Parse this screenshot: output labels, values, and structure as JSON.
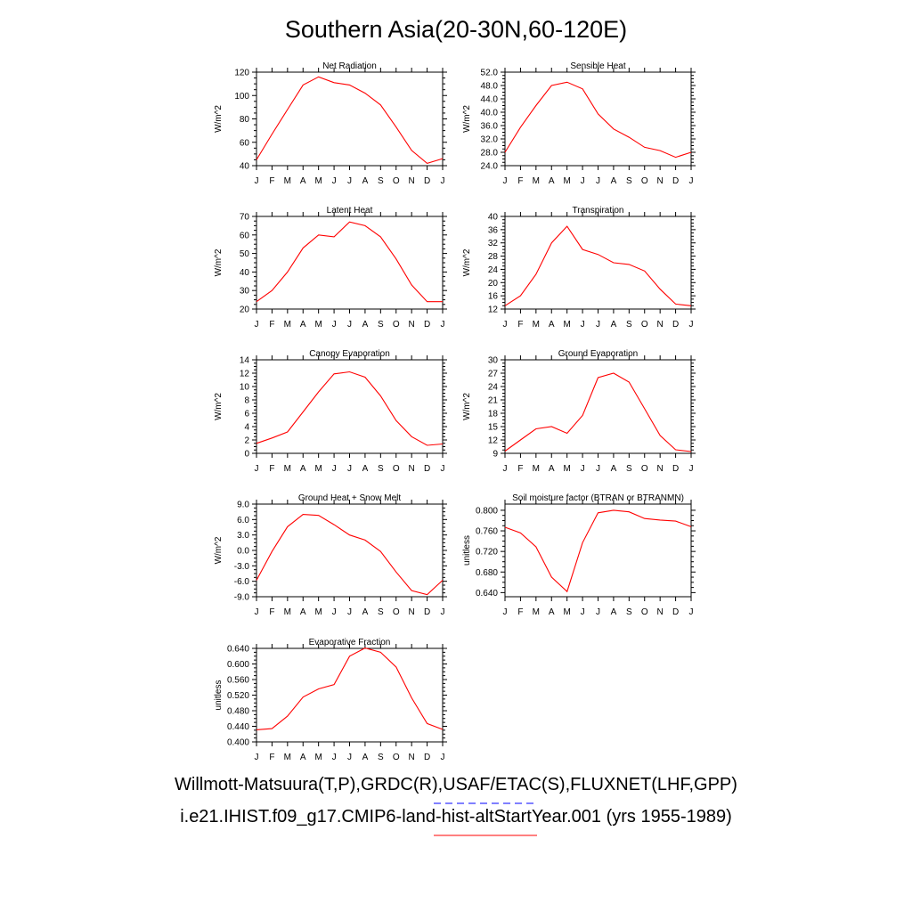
{
  "title": "Southern Asia(20-30N,60-120E)",
  "legend": {
    "observations": "Willmott-Matsuura(T,P),GRDC(R),USAF/ETAC(S),FLUXNET(LHF,GPP)",
    "model": "i.e21.IHIST.f09_g17.CMIP6-land-hist-altStartYear.001 (yrs 1955-1989)",
    "observations_color": "#0000ff",
    "model_color": "#ff0000"
  },
  "chart_data": [
    {
      "type": "line",
      "title": "Net Radiation",
      "ylabel": "W/m^2",
      "categories": [
        "J",
        "F",
        "M",
        "A",
        "M",
        "J",
        "J",
        "A",
        "S",
        "O",
        "N",
        "D",
        "J"
      ],
      "ylim": [
        40,
        120
      ],
      "yticks": [
        40,
        60,
        80,
        100,
        120
      ],
      "yticklabels": [
        "40",
        "60",
        "80",
        "100",
        "120"
      ],
      "series": [
        {
          "color": "#ff0000",
          "values": [
            45,
            67,
            88,
            109,
            116,
            111,
            109,
            102,
            92,
            73,
            53,
            42,
            46
          ]
        }
      ]
    },
    {
      "type": "line",
      "title": "Sensible Heat",
      "ylabel": "W/m^2",
      "categories": [
        "J",
        "F",
        "M",
        "A",
        "M",
        "J",
        "J",
        "A",
        "S",
        "O",
        "N",
        "D",
        "J"
      ],
      "ylim": [
        24,
        52
      ],
      "yticks": [
        24,
        28,
        32,
        36,
        40,
        44,
        48,
        52
      ],
      "yticklabels": [
        "24.0",
        "28.0",
        "32.0",
        "36.0",
        "40.0",
        "44.0",
        "48.0",
        "52.0"
      ],
      "series": [
        {
          "color": "#ff0000",
          "values": [
            28,
            35.5,
            42,
            48,
            49,
            47,
            39.5,
            35,
            32.5,
            29.5,
            28.5,
            26.5,
            28
          ]
        }
      ]
    },
    {
      "type": "line",
      "title": "Latent Heat",
      "ylabel": "W/m^2",
      "categories": [
        "J",
        "F",
        "M",
        "A",
        "M",
        "J",
        "J",
        "A",
        "S",
        "O",
        "N",
        "D",
        "J"
      ],
      "ylim": [
        20,
        70
      ],
      "yticks": [
        20,
        30,
        40,
        50,
        60,
        70
      ],
      "yticklabels": [
        "20",
        "30",
        "40",
        "50",
        "60",
        "70"
      ],
      "series": [
        {
          "color": "#ff0000",
          "values": [
            24,
            30,
            40,
            53,
            60,
            59,
            67,
            65,
            59,
            47,
            33,
            24,
            24
          ]
        }
      ]
    },
    {
      "type": "line",
      "title": "Transpiration",
      "ylabel": "W/m^2",
      "categories": [
        "J",
        "F",
        "M",
        "A",
        "M",
        "J",
        "J",
        "A",
        "S",
        "O",
        "N",
        "D",
        "J"
      ],
      "ylim": [
        12,
        40
      ],
      "yticks": [
        12,
        16,
        20,
        24,
        28,
        32,
        36,
        40
      ],
      "yticklabels": [
        "12",
        "16",
        "20",
        "24",
        "28",
        "32",
        "36",
        "40"
      ],
      "series": [
        {
          "color": "#ff0000",
          "values": [
            13,
            16,
            22.5,
            32,
            37,
            30,
            28.5,
            26,
            25.5,
            23.5,
            18,
            13.5,
            13
          ]
        }
      ]
    },
    {
      "type": "line",
      "title": "Canopy Evaporation",
      "ylabel": "W/m^2",
      "categories": [
        "J",
        "F",
        "M",
        "A",
        "M",
        "J",
        "J",
        "A",
        "S",
        "O",
        "N",
        "D",
        "J"
      ],
      "ylim": [
        0,
        14
      ],
      "yticks": [
        0,
        2,
        4,
        6,
        8,
        10,
        12,
        14
      ],
      "yticklabels": [
        "0",
        "2",
        "4",
        "6",
        "8",
        "10",
        "12",
        "14"
      ],
      "series": [
        {
          "color": "#ff0000",
          "values": [
            1.5,
            2.3,
            3.2,
            6.2,
            9.2,
            11.9,
            12.2,
            11.4,
            8.6,
            4.9,
            2.5,
            1.2,
            1.4
          ]
        }
      ]
    },
    {
      "type": "line",
      "title": "Ground Evaporation",
      "ylabel": "W/m^2",
      "categories": [
        "J",
        "F",
        "M",
        "A",
        "M",
        "J",
        "J",
        "A",
        "S",
        "O",
        "N",
        "D",
        "J"
      ],
      "ylim": [
        9,
        30
      ],
      "yticks": [
        9,
        12,
        15,
        18,
        21,
        24,
        27,
        30
      ],
      "yticklabels": [
        "9",
        "12",
        "15",
        "18",
        "21",
        "24",
        "27",
        "30"
      ],
      "series": [
        {
          "color": "#ff0000",
          "values": [
            9.5,
            12,
            14.5,
            15,
            13.5,
            17.5,
            26,
            27,
            25,
            19,
            13,
            9.8,
            9.4
          ]
        }
      ]
    },
    {
      "type": "line",
      "title": "Ground Heat + Snow Melt",
      "ylabel": "W/m^2",
      "categories": [
        "J",
        "F",
        "M",
        "A",
        "M",
        "J",
        "J",
        "A",
        "S",
        "O",
        "N",
        "D",
        "J"
      ],
      "ylim": [
        -9,
        9
      ],
      "yticks": [
        -9,
        -6,
        -3,
        0,
        3,
        6,
        9
      ],
      "yticklabels": [
        "-9.0",
        "-6.0",
        "-3.0",
        "0.0",
        "3.0",
        "6.0",
        "9.0"
      ],
      "series": [
        {
          "color": "#ff0000",
          "values": [
            -5.8,
            -0.2,
            4.6,
            7,
            6.8,
            5,
            3,
            2,
            -0.2,
            -4.2,
            -7.8,
            -8.6,
            -5.8
          ]
        }
      ]
    },
    {
      "type": "line",
      "title": "Soil moisture factor (BTRAN or BTRANMN)",
      "ylabel": "unitless",
      "categories": [
        "J",
        "F",
        "M",
        "A",
        "M",
        "J",
        "J",
        "A",
        "S",
        "O",
        "N",
        "D",
        "J"
      ],
      "ylim": [
        0.632,
        0.812
      ],
      "yticks": [
        0.64,
        0.68,
        0.72,
        0.76,
        0.8
      ],
      "yticklabels": [
        "0.640",
        "0.680",
        "0.720",
        "0.760",
        "0.800"
      ],
      "series": [
        {
          "color": "#ff0000",
          "values": [
            0.767,
            0.756,
            0.729,
            0.67,
            0.642,
            0.737,
            0.795,
            0.8,
            0.797,
            0.784,
            0.781,
            0.779,
            0.768
          ]
        }
      ]
    },
    {
      "type": "line",
      "title": "Evaporative Fraction",
      "ylabel": "unitless",
      "categories": [
        "J",
        "F",
        "M",
        "A",
        "M",
        "J",
        "J",
        "A",
        "S",
        "O",
        "N",
        "D",
        "J"
      ],
      "ylim": [
        0.4,
        0.64
      ],
      "yticks": [
        0.4,
        0.44,
        0.48,
        0.52,
        0.56,
        0.6,
        0.64
      ],
      "yticklabels": [
        "0.400",
        "0.440",
        "0.480",
        "0.520",
        "0.560",
        "0.600",
        "0.640"
      ],
      "series": [
        {
          "color": "#ff0000",
          "values": [
            0.431,
            0.434,
            0.466,
            0.515,
            0.536,
            0.547,
            0.62,
            0.641,
            0.63,
            0.592,
            0.513,
            0.447,
            0.432
          ]
        }
      ]
    }
  ]
}
